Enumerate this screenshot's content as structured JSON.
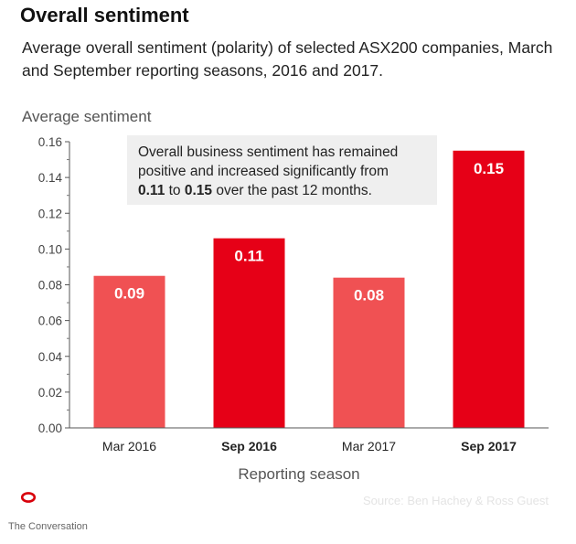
{
  "title": "Overall sentiment",
  "subtitle": "Average overall sentiment (polarity) of selected ASX200 companies, March and September reporting seasons, 2016 and 2017.",
  "annotation": {
    "line1": "Overall business sentiment has remained",
    "line2": "positive and increased significantly from",
    "from_value": "0.11",
    "to_text": " to ",
    "to_value": "0.15",
    "tail": " over the past 12 months."
  },
  "source": "Source: Ben Hachey & Ross Guest",
  "brand": "The Conversation",
  "colors": {
    "mar_bar": "#f05153",
    "sep_bar": "#e60017",
    "brand": "#d8000b"
  },
  "chart_data": {
    "type": "bar",
    "ylabel": "Average sentiment",
    "xlabel": "Reporting season",
    "ylim": [
      0,
      0.16
    ],
    "yticks": [
      "0.00",
      "0.02",
      "0.04",
      "0.06",
      "0.08",
      "0.10",
      "0.12",
      "0.14",
      "0.16"
    ],
    "categories": [
      "Mar 2016",
      "Sep 2016",
      "Mar 2017",
      "Sep 2017"
    ],
    "values": [
      0.085,
      0.106,
      0.084,
      0.155
    ],
    "data_labels": [
      "0.09",
      "0.11",
      "0.08",
      "0.15"
    ],
    "bar_color_keys": [
      "mar_bar",
      "sep_bar",
      "mar_bar",
      "sep_bar"
    ],
    "bold_categories": [
      false,
      true,
      false,
      true
    ],
    "grid": false,
    "legend": "none"
  }
}
